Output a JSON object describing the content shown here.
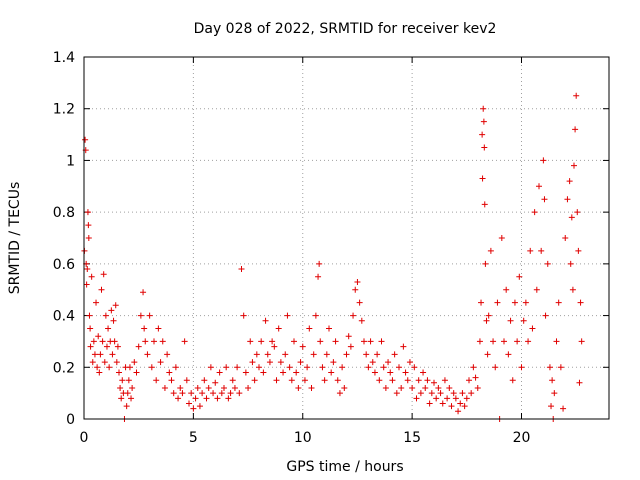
{
  "chart_data": {
    "type": "scatter",
    "title": "Day 028 of 2022, SRMTID for receiver kev2",
    "xlabel": "GPS time / hours",
    "ylabel": "SRMTID / TECUs",
    "xlim": [
      0,
      24
    ],
    "ylim": [
      0,
      1.4
    ],
    "xticks": [
      0,
      5,
      10,
      15,
      20
    ],
    "yticks": [
      0,
      0.2,
      0.4,
      0.6,
      0.8,
      1,
      1.2,
      1.4
    ],
    "xtick_labels": [
      "0",
      "5",
      "10",
      "15",
      "20"
    ],
    "ytick_labels": [
      "0",
      "0.2",
      "0.4",
      "0.6",
      "0.8",
      "1",
      "1.2",
      "1.4"
    ],
    "grid": true,
    "marker": "+",
    "color": "#e00000",
    "series": [
      {
        "name": "kev2",
        "points": [
          [
            0.02,
            0.65
          ],
          [
            0.05,
            1.08
          ],
          [
            0.08,
            1.04
          ],
          [
            0.1,
            0.6
          ],
          [
            0.12,
            0.52
          ],
          [
            0.15,
            0.58
          ],
          [
            0.18,
            0.8
          ],
          [
            0.2,
            0.75
          ],
          [
            0.22,
            0.7
          ],
          [
            0.25,
            0.4
          ],
          [
            0.28,
            0.35
          ],
          [
            0.3,
            0.28
          ],
          [
            0.35,
            0.55
          ],
          [
            0.4,
            0.22
          ],
          [
            0.45,
            0.3
          ],
          [
            0.5,
            0.25
          ],
          [
            0.55,
            0.45
          ],
          [
            0.6,
            0.2
          ],
          [
            0.65,
            0.32
          ],
          [
            0.7,
            0.18
          ],
          [
            0.75,
            0.25
          ],
          [
            0.8,
            0.5
          ],
          [
            0.85,
            0.3
          ],
          [
            0.9,
            0.56
          ],
          [
            0.95,
            0.22
          ],
          [
            1.0,
            0.4
          ],
          [
            1.05,
            0.28
          ],
          [
            1.1,
            0.35
          ],
          [
            1.15,
            0.2
          ],
          [
            1.2,
            0.3
          ],
          [
            1.25,
            0.42
          ],
          [
            1.3,
            0.25
          ],
          [
            1.35,
            0.38
          ],
          [
            1.4,
            0.3
          ],
          [
            1.45,
            0.44
          ],
          [
            1.5,
            0.22
          ],
          [
            1.55,
            0.28
          ],
          [
            1.6,
            0.18
          ],
          [
            1.65,
            0.12
          ],
          [
            1.7,
            0.08
          ],
          [
            1.75,
            0.15
          ],
          [
            1.8,
            0.1
          ],
          [
            1.85,
            0.0
          ],
          [
            1.9,
            0.2
          ],
          [
            1.95,
            0.05
          ],
          [
            2.0,
            0.1
          ],
          [
            2.05,
            0.15
          ],
          [
            2.1,
            0.2
          ],
          [
            2.15,
            0.08
          ],
          [
            2.2,
            0.12
          ],
          [
            2.3,
            0.22
          ],
          [
            2.4,
            0.18
          ],
          [
            2.5,
            0.28
          ],
          [
            2.6,
            0.4
          ],
          [
            2.7,
            0.49
          ],
          [
            2.75,
            0.35
          ],
          [
            2.8,
            0.3
          ],
          [
            2.9,
            0.25
          ],
          [
            3.0,
            0.4
          ],
          [
            3.1,
            0.2
          ],
          [
            3.2,
            0.3
          ],
          [
            3.3,
            0.15
          ],
          [
            3.4,
            0.35
          ],
          [
            3.5,
            0.22
          ],
          [
            3.6,
            0.3
          ],
          [
            3.7,
            0.12
          ],
          [
            3.8,
            0.25
          ],
          [
            3.9,
            0.18
          ],
          [
            4.0,
            0.15
          ],
          [
            4.1,
            0.1
          ],
          [
            4.2,
            0.2
          ],
          [
            4.3,
            0.08
          ],
          [
            4.4,
            0.12
          ],
          [
            4.5,
            0.1
          ],
          [
            4.6,
            0.3
          ],
          [
            4.7,
            0.15
          ],
          [
            4.8,
            0.06
          ],
          [
            4.9,
            0.1
          ],
          [
            5.0,
            0.04
          ],
          [
            5.1,
            0.08
          ],
          [
            5.2,
            0.12
          ],
          [
            5.3,
            0.05
          ],
          [
            5.4,
            0.1
          ],
          [
            5.5,
            0.15
          ],
          [
            5.6,
            0.08
          ],
          [
            5.7,
            0.12
          ],
          [
            5.8,
            0.2
          ],
          [
            5.9,
            0.1
          ],
          [
            6.0,
            0.14
          ],
          [
            6.1,
            0.08
          ],
          [
            6.2,
            0.18
          ],
          [
            6.3,
            0.1
          ],
          [
            6.4,
            0.12
          ],
          [
            6.5,
            0.2
          ],
          [
            6.6,
            0.08
          ],
          [
            6.7,
            0.1
          ],
          [
            6.8,
            0.15
          ],
          [
            6.9,
            0.12
          ],
          [
            7.0,
            0.2
          ],
          [
            7.1,
            0.1
          ],
          [
            7.2,
            0.58
          ],
          [
            7.3,
            0.4
          ],
          [
            7.4,
            0.18
          ],
          [
            7.5,
            0.12
          ],
          [
            7.6,
            0.3
          ],
          [
            7.7,
            0.22
          ],
          [
            7.8,
            0.15
          ],
          [
            7.9,
            0.25
          ],
          [
            8.0,
            0.2
          ],
          [
            8.1,
            0.3
          ],
          [
            8.2,
            0.18
          ],
          [
            8.3,
            0.38
          ],
          [
            8.4,
            0.25
          ],
          [
            8.5,
            0.22
          ],
          [
            8.6,
            0.3
          ],
          [
            8.7,
            0.28
          ],
          [
            8.8,
            0.15
          ],
          [
            8.9,
            0.35
          ],
          [
            9.0,
            0.22
          ],
          [
            9.1,
            0.18
          ],
          [
            9.2,
            0.25
          ],
          [
            9.3,
            0.4
          ],
          [
            9.4,
            0.2
          ],
          [
            9.5,
            0.15
          ],
          [
            9.6,
            0.3
          ],
          [
            9.7,
            0.18
          ],
          [
            9.8,
            0.12
          ],
          [
            9.9,
            0.22
          ],
          [
            10.0,
            0.28
          ],
          [
            10.1,
            0.15
          ],
          [
            10.2,
            0.2
          ],
          [
            10.3,
            0.35
          ],
          [
            10.4,
            0.12
          ],
          [
            10.5,
            0.25
          ],
          [
            10.6,
            0.4
          ],
          [
            10.7,
            0.55
          ],
          [
            10.75,
            0.6
          ],
          [
            10.8,
            0.3
          ],
          [
            10.9,
            0.2
          ],
          [
            11.0,
            0.15
          ],
          [
            11.1,
            0.25
          ],
          [
            11.2,
            0.35
          ],
          [
            11.3,
            0.18
          ],
          [
            11.4,
            0.22
          ],
          [
            11.5,
            0.3
          ],
          [
            11.6,
            0.15
          ],
          [
            11.7,
            0.1
          ],
          [
            11.8,
            0.2
          ],
          [
            11.9,
            0.12
          ],
          [
            12.0,
            0.25
          ],
          [
            12.1,
            0.32
          ],
          [
            12.2,
            0.28
          ],
          [
            12.3,
            0.4
          ],
          [
            12.4,
            0.5
          ],
          [
            12.5,
            0.53
          ],
          [
            12.6,
            0.45
          ],
          [
            12.7,
            0.38
          ],
          [
            12.8,
            0.3
          ],
          [
            12.9,
            0.25
          ],
          [
            13.0,
            0.2
          ],
          [
            13.1,
            0.3
          ],
          [
            13.2,
            0.22
          ],
          [
            13.3,
            0.18
          ],
          [
            13.4,
            0.25
          ],
          [
            13.5,
            0.15
          ],
          [
            13.6,
            0.3
          ],
          [
            13.7,
            0.2
          ],
          [
            13.8,
            0.12
          ],
          [
            13.9,
            0.22
          ],
          [
            14.0,
            0.18
          ],
          [
            14.1,
            0.15
          ],
          [
            14.2,
            0.25
          ],
          [
            14.3,
            0.1
          ],
          [
            14.4,
            0.2
          ],
          [
            14.5,
            0.12
          ],
          [
            14.6,
            0.28
          ],
          [
            14.7,
            0.18
          ],
          [
            14.8,
            0.15
          ],
          [
            14.9,
            0.22
          ],
          [
            15.0,
            0.12
          ],
          [
            15.1,
            0.2
          ],
          [
            15.2,
            0.08
          ],
          [
            15.3,
            0.15
          ],
          [
            15.4,
            0.1
          ],
          [
            15.5,
            0.18
          ],
          [
            15.6,
            0.12
          ],
          [
            15.7,
            0.15
          ],
          [
            15.8,
            0.06
          ],
          [
            15.9,
            0.1
          ],
          [
            16.0,
            0.14
          ],
          [
            16.1,
            0.08
          ],
          [
            16.2,
            0.12
          ],
          [
            16.3,
            0.1
          ],
          [
            16.4,
            0.06
          ],
          [
            16.5,
            0.15
          ],
          [
            16.6,
            0.08
          ],
          [
            16.7,
            0.12
          ],
          [
            16.8,
            0.05
          ],
          [
            16.9,
            0.1
          ],
          [
            17.0,
            0.08
          ],
          [
            17.1,
            0.03
          ],
          [
            17.2,
            0.06
          ],
          [
            17.3,
            0.1
          ],
          [
            17.4,
            0.05
          ],
          [
            17.5,
            0.08
          ],
          [
            17.6,
            0.15
          ],
          [
            17.7,
            0.1
          ],
          [
            17.8,
            0.2
          ],
          [
            17.9,
            0.16
          ],
          [
            18.0,
            0.12
          ],
          [
            18.1,
            0.3
          ],
          [
            18.15,
            0.45
          ],
          [
            18.2,
            1.1
          ],
          [
            18.22,
            0.93
          ],
          [
            18.25,
            1.2
          ],
          [
            18.28,
            1.15
          ],
          [
            18.3,
            1.05
          ],
          [
            18.32,
            0.83
          ],
          [
            18.35,
            0.6
          ],
          [
            18.4,
            0.38
          ],
          [
            18.45,
            0.25
          ],
          [
            18.5,
            0.4
          ],
          [
            18.6,
            0.65
          ],
          [
            18.7,
            0.3
          ],
          [
            18.8,
            0.2
          ],
          [
            18.9,
            0.45
          ],
          [
            19.0,
            0.0
          ],
          [
            19.1,
            0.7
          ],
          [
            19.2,
            0.3
          ],
          [
            19.3,
            0.5
          ],
          [
            19.4,
            0.25
          ],
          [
            19.5,
            0.38
          ],
          [
            19.6,
            0.15
          ],
          [
            19.7,
            0.45
          ],
          [
            19.8,
            0.3
          ],
          [
            19.9,
            0.55
          ],
          [
            20.0,
            0.2
          ],
          [
            20.1,
            0.38
          ],
          [
            20.2,
            0.45
          ],
          [
            20.3,
            0.3
          ],
          [
            20.4,
            0.65
          ],
          [
            20.5,
            0.35
          ],
          [
            20.6,
            0.8
          ],
          [
            20.7,
            0.5
          ],
          [
            20.8,
            0.9
          ],
          [
            20.9,
            0.65
          ],
          [
            21.0,
            1.0
          ],
          [
            21.05,
            0.85
          ],
          [
            21.1,
            0.4
          ],
          [
            21.2,
            0.6
          ],
          [
            21.3,
            0.2
          ],
          [
            21.35,
            0.05
          ],
          [
            21.4,
            0.15
          ],
          [
            21.45,
            0.0
          ],
          [
            21.5,
            0.1
          ],
          [
            21.6,
            0.3
          ],
          [
            21.7,
            0.45
          ],
          [
            21.8,
            0.2
          ],
          [
            21.9,
            0.04
          ],
          [
            22.0,
            0.7
          ],
          [
            22.1,
            0.85
          ],
          [
            22.2,
            0.92
          ],
          [
            22.25,
            0.6
          ],
          [
            22.3,
            0.78
          ],
          [
            22.35,
            0.5
          ],
          [
            22.4,
            0.98
          ],
          [
            22.45,
            1.12
          ],
          [
            22.5,
            1.25
          ],
          [
            22.55,
            0.8
          ],
          [
            22.6,
            0.65
          ],
          [
            22.65,
            0.14
          ],
          [
            22.7,
            0.45
          ],
          [
            22.75,
            0.3
          ]
        ]
      }
    ]
  }
}
